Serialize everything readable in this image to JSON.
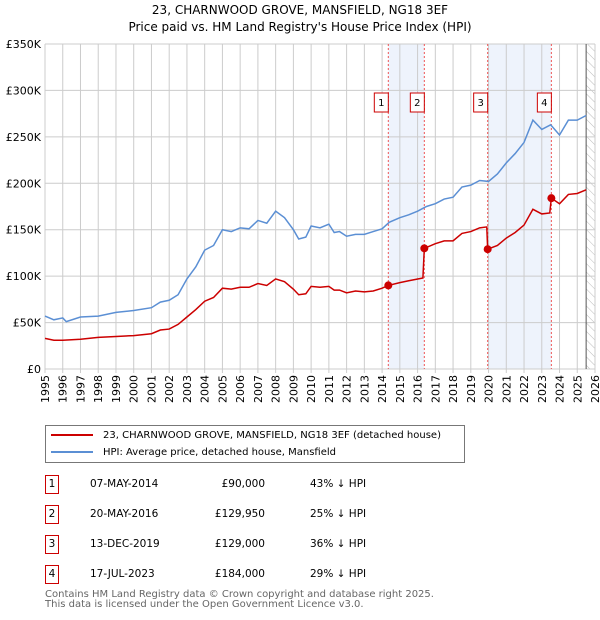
{
  "title": "23, CHARNWOOD GROVE, MANSFIELD, NG18 3EF",
  "subtitle": "Price paid vs. HM Land Registry's House Price Index (HPI)",
  "chart_data": {
    "type": "line",
    "ylim": [
      0,
      350000
    ],
    "xlim": [
      1995,
      2026
    ],
    "y_ticks": [
      {
        "v": 0,
        "label": "£0"
      },
      {
        "v": 50000,
        "label": "£50K"
      },
      {
        "v": 100000,
        "label": "£100K"
      },
      {
        "v": 150000,
        "label": "£150K"
      },
      {
        "v": 200000,
        "label": "£200K"
      },
      {
        "v": 250000,
        "label": "£250K"
      },
      {
        "v": 300000,
        "label": "£300K"
      },
      {
        "v": 350000,
        "label": "£350K"
      }
    ],
    "x_ticks": [
      "1995",
      "1996",
      "1997",
      "1998",
      "1999",
      "2000",
      "2001",
      "2002",
      "2003",
      "2004",
      "2005",
      "2006",
      "2007",
      "2008",
      "2009",
      "2010",
      "2011",
      "2012",
      "2013",
      "2014",
      "2015",
      "2016",
      "2017",
      "2018",
      "2019",
      "2020",
      "2021",
      "2022",
      "2023",
      "2024",
      "2025",
      "2026"
    ],
    "grid": true,
    "series": [
      {
        "name": "23, CHARNWOOD GROVE, MANSFIELD, NG18 3EF (detached house)",
        "color": "#cc0000",
        "x": [
          1995,
          1995.5,
          1996,
          1997,
          1998,
          1999,
          2000,
          2001,
          2001.5,
          2002,
          2002.5,
          2003,
          2003.5,
          2004,
          2004.5,
          2005,
          2005.5,
          2006,
          2006.5,
          2007,
          2007.5,
          2008,
          2008.5,
          2009,
          2009.3,
          2009.7,
          2010,
          2010.5,
          2011,
          2011.3,
          2011.6,
          2012,
          2012.5,
          2013,
          2013.5,
          2014,
          2014.35,
          2015,
          2015.5,
          2016.3,
          2016.38,
          2017,
          2017.5,
          2018,
          2018.5,
          2019,
          2019.5,
          2019.9,
          2019.95,
          2020.5,
          2021,
          2021.5,
          2022,
          2022.5,
          2023,
          2023.45,
          2023.54,
          2024,
          2024.5,
          2025,
          2025.5
        ],
        "y": [
          33000,
          31000,
          31000,
          32000,
          34000,
          35000,
          36000,
          38000,
          42000,
          43000,
          48000,
          56000,
          64000,
          73000,
          77000,
          87000,
          86000,
          88000,
          88000,
          92000,
          90000,
          97000,
          94000,
          86000,
          80000,
          81000,
          89000,
          88000,
          89000,
          85000,
          85000,
          82000,
          84000,
          83000,
          84000,
          87000,
          90000,
          93000,
          95000,
          98000,
          129950,
          135000,
          138000,
          138000,
          146000,
          148000,
          152000,
          153000,
          129000,
          133000,
          141000,
          147000,
          155000,
          172000,
          167000,
          168000,
          184000,
          178000,
          188000,
          189000,
          193000
        ]
      },
      {
        "name": "HPI: Average price, detached house, Mansfield",
        "color": "#5b8fd4",
        "x": [
          1995,
          1995.5,
          1996,
          1996.2,
          1997,
          1998,
          1999,
          2000,
          2001,
          2001.5,
          2002,
          2002.5,
          2003,
          2003.5,
          2004,
          2004.5,
          2005,
          2005.5,
          2006,
          2006.5,
          2007,
          2007.5,
          2008,
          2008.5,
          2009,
          2009.3,
          2009.7,
          2010,
          2010.5,
          2011,
          2011.3,
          2011.6,
          2012,
          2012.5,
          2013,
          2013.5,
          2014,
          2014.4,
          2015,
          2015.5,
          2016,
          2016.5,
          2017,
          2017.5,
          2018,
          2018.5,
          2019,
          2019.5,
          2020,
          2020.5,
          2021,
          2021.5,
          2022,
          2022.5,
          2023,
          2023.5,
          2024,
          2024.5,
          2025,
          2025.5
        ],
        "y": [
          57000,
          53000,
          55000,
          51000,
          56000,
          57000,
          61000,
          63000,
          66000,
          72000,
          74000,
          80000,
          97000,
          110000,
          128000,
          133000,
          150000,
          148000,
          152000,
          151000,
          160000,
          157000,
          170000,
          163000,
          150000,
          140000,
          142000,
          154000,
          152000,
          156000,
          147000,
          148000,
          143000,
          145000,
          145000,
          148000,
          151000,
          158000,
          163000,
          166000,
          170000,
          175000,
          178000,
          183000,
          185000,
          196000,
          198000,
          203000,
          202000,
          210000,
          222000,
          232000,
          244000,
          268000,
          258000,
          263000,
          252000,
          268000,
          268000,
          273000
        ]
      }
    ],
    "shaded_ranges": [
      [
        2014.35,
        2016.38
      ],
      [
        2019.95,
        2023.54
      ]
    ],
    "forecast_hatch_from": 2025.5,
    "markers": [
      {
        "label": "1",
        "x": 2014.35,
        "y": 90000
      },
      {
        "label": "2",
        "x": 2016.38,
        "y": 129950
      },
      {
        "label": "3",
        "x": 2019.95,
        "y": 129000
      },
      {
        "label": "4",
        "x": 2023.54,
        "y": 184000
      }
    ]
  },
  "legend": [
    {
      "label": "23, CHARNWOOD GROVE, MANSFIELD, NG18 3EF (detached house)",
      "color": "#cc0000"
    },
    {
      "label": "HPI: Average price, detached house, Mansfield",
      "color": "#5b8fd4"
    }
  ],
  "transactions": [
    {
      "num": "1",
      "date": "07-MAY-2014",
      "price": "£90,000",
      "hpi": "43% ↓ HPI"
    },
    {
      "num": "2",
      "date": "20-MAY-2016",
      "price": "£129,950",
      "hpi": "25% ↓ HPI"
    },
    {
      "num": "3",
      "date": "13-DEC-2019",
      "price": "£129,000",
      "hpi": "36% ↓ HPI"
    },
    {
      "num": "4",
      "date": "17-JUL-2023",
      "price": "£184,000",
      "hpi": "29% ↓ HPI"
    }
  ],
  "footer": [
    "Contains HM Land Registry data © Crown copyright and database right 2025.",
    "This data is licensed under the Open Government Licence v3.0."
  ]
}
